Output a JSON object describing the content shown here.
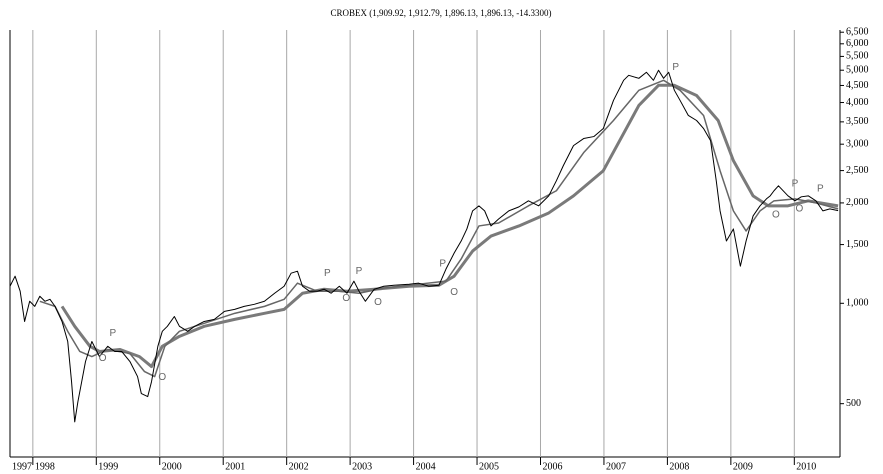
{
  "chart_data": {
    "type": "line",
    "title": "CROBEX (1,909.92, 1,912.79, 1,896.13, 1,896.13, -14.3300)",
    "yscale": "log",
    "y_axis_side": "right",
    "grid": "x",
    "xlim": [
      1997.64,
      2010.72
    ],
    "xticks": [
      1997,
      1998,
      1999,
      2000,
      2001,
      2002,
      2003,
      2004,
      2005,
      2006,
      2007,
      2008,
      2009,
      2010
    ],
    "ylim": [
      346,
      6600
    ],
    "yticks": [
      500,
      {
        "value": 1000,
        "label": "1,000"
      },
      {
        "value": 1500,
        "label": "1,500"
      },
      {
        "value": 2000,
        "label": "2,000"
      },
      {
        "value": 2500,
        "label": "2,500"
      },
      {
        "value": 3000,
        "label": "3,000"
      },
      {
        "value": 3500,
        "label": "3,500"
      },
      {
        "value": 4000,
        "label": "4,000"
      },
      {
        "value": 4500,
        "label": "4,500"
      },
      {
        "value": 5000,
        "label": "5,000"
      },
      {
        "value": 5500,
        "label": "5,500"
      },
      {
        "value": 6000,
        "label": "6,000"
      },
      {
        "value": 6500,
        "label": "6,500"
      }
    ],
    "series": [
      {
        "color": "#000000",
        "width": 1,
        "x": [
          1997.64,
          1997.72,
          1997.8,
          1997.87,
          1997.95,
          1998.03,
          1998.11,
          1998.19,
          1998.27,
          1998.35,
          1998.46,
          1998.55,
          1998.61,
          1998.66,
          1998.71,
          1998.77,
          1998.83,
          1998.93,
          1999.05,
          1999.18,
          1999.29,
          1999.4,
          1999.53,
          1999.65,
          1999.71,
          1999.81,
          1999.87,
          1999.97,
          2000.04,
          2000.12,
          2000.23,
          2000.31,
          2000.44,
          2000.55,
          2000.7,
          2000.86,
          2001.02,
          2001.18,
          2001.33,
          2001.49,
          2001.65,
          2001.81,
          2001.96,
          2002.07,
          2002.17,
          2002.25,
          2002.36,
          2002.48,
          2002.59,
          2002.7,
          2002.83,
          2002.95,
          2003.06,
          2003.14,
          2003.24,
          2003.38,
          2003.53,
          2003.69,
          2003.93,
          2004.08,
          2004.24,
          2004.4,
          2004.51,
          2004.64,
          2004.75,
          2004.84,
          2004.93,
          2005.03,
          2005.12,
          2005.22,
          2005.34,
          2005.5,
          2005.66,
          2005.81,
          2005.97,
          2006.13,
          2006.25,
          2006.36,
          2006.52,
          2006.68,
          2006.84,
          2006.99,
          2007.15,
          2007.31,
          2007.39,
          2007.55,
          2007.67,
          2007.78,
          2007.86,
          2007.94,
          2008.02,
          2008.11,
          2008.2,
          2008.33,
          2008.46,
          2008.57,
          2008.68,
          2008.77,
          2008.83,
          2008.93,
          2009.04,
          2009.15,
          2009.24,
          2009.35,
          2009.46,
          2009.56,
          2009.62,
          2009.68,
          2009.75,
          2009.9,
          2010.01,
          2010.11,
          2010.22,
          2010.34,
          2010.45,
          2010.56,
          2010.69
        ],
        "values": [
          1125,
          1206,
          1087,
          882,
          1014,
          979,
          1050,
          1014,
          1028,
          979,
          882,
          768,
          582,
          441,
          507,
          582,
          669,
          768,
          692,
          743,
          717,
          717,
          669,
          603,
          536,
          525,
          582,
          743,
          824,
          853,
          913,
          853,
          824,
          853,
          882,
          895,
          946,
          959,
          979,
          993,
          1014,
          1072,
          1125,
          1231,
          1248,
          1125,
          1087,
          1087,
          1102,
          1072,
          1125,
          1072,
          1165,
          1087,
          1014,
          1102,
          1125,
          1133,
          1141,
          1149,
          1125,
          1133,
          1266,
          1415,
          1537,
          1671,
          1893,
          1960,
          1893,
          1706,
          1790,
          1893,
          1946,
          2029,
          1960,
          2100,
          2330,
          2587,
          2971,
          3119,
          3162,
          3343,
          4058,
          4663,
          4827,
          4728,
          4929,
          4663,
          5000,
          4728,
          4929,
          4352,
          4058,
          3658,
          3533,
          3343,
          3075,
          2330,
          1893,
          1537,
          1671,
          1292,
          1537,
          1828,
          1960,
          2056,
          2100,
          2175,
          2251,
          2100,
          2029,
          2086,
          2100,
          2029,
          1893,
          1919,
          1896
        ]
      },
      {
        "color": "#666666",
        "width": 1.5,
        "x": [
          1998.11,
          1998.35,
          1998.55,
          1998.74,
          1998.93,
          1999.18,
          1999.53,
          1999.76,
          1999.92,
          2000.08,
          2000.31,
          2000.7,
          2001.18,
          2001.65,
          2001.96,
          2002.17,
          2002.48,
          2002.83,
          2003.14,
          2003.53,
          2004.08,
          2004.51,
          2004.75,
          2005.03,
          2005.34,
          2005.81,
          2006.25,
          2006.68,
          2007.15,
          2007.55,
          2007.94,
          2008.2,
          2008.57,
          2008.83,
          2009.04,
          2009.24,
          2009.46,
          2009.68,
          2010.01,
          2010.34,
          2010.69
        ],
        "values": [
          1014,
          979,
          824,
          717,
          692,
          727,
          707,
          624,
          603,
          743,
          824,
          871,
          933,
          979,
          1028,
          1149,
          1087,
          1087,
          1072,
          1110,
          1141,
          1165,
          1358,
          1706,
          1741,
          1960,
          2175,
          2830,
          3533,
          4352,
          4663,
          4352,
          3658,
          2498,
          1893,
          1648,
          1893,
          2029,
          2056,
          2000,
          1919
        ]
      },
      {
        "color": "#7a7a7a",
        "width": 3,
        "x": [
          1998.46,
          1998.66,
          1998.9,
          1999.05,
          1999.37,
          1999.68,
          1999.87,
          2000.04,
          2000.31,
          2000.7,
          2001.18,
          2001.65,
          2001.96,
          2002.25,
          2002.59,
          2002.95,
          2003.38,
          2003.93,
          2004.4,
          2004.64,
          2004.93,
          2005.22,
          2005.66,
          2006.13,
          2006.52,
          2006.99,
          2007.55,
          2007.86,
          2008.11,
          2008.46,
          2008.8,
          2009.04,
          2009.35,
          2009.59,
          2009.9,
          2010.22,
          2010.69
        ],
        "values": [
          979,
          853,
          743,
          717,
          727,
          692,
          646,
          743,
          796,
          853,
          895,
          933,
          959,
          1072,
          1102,
          1087,
          1102,
          1125,
          1133,
          1206,
          1434,
          1591,
          1706,
          1866,
          2100,
          2498,
          3920,
          4505,
          4505,
          4200,
          3533,
          2678,
          2100,
          1960,
          1960,
          2029,
          1960
        ]
      }
    ],
    "annotations": [
      {
        "text": "O",
        "x": 1999.1,
        "y": 683
      },
      {
        "text": "P",
        "x": 1999.26,
        "y": 813
      },
      {
        "text": "O",
        "x": 2000.04,
        "y": 599
      },
      {
        "text": "P",
        "x": 2002.64,
        "y": 1231
      },
      {
        "text": "O",
        "x": 2002.94,
        "y": 1035
      },
      {
        "text": "P",
        "x": 2003.14,
        "y": 1248
      },
      {
        "text": "O",
        "x": 2003.44,
        "y": 1007
      },
      {
        "text": "P",
        "x": 2004.46,
        "y": 1311
      },
      {
        "text": "O",
        "x": 2004.64,
        "y": 1079
      },
      {
        "text": "P",
        "x": 2008.13,
        "y": 5100
      },
      {
        "text": "O",
        "x": 2009.71,
        "y": 1841
      },
      {
        "text": "P",
        "x": 2010.01,
        "y": 2282
      },
      {
        "text": "O",
        "x": 2010.08,
        "y": 1919
      },
      {
        "text": "P",
        "x": 2010.41,
        "y": 2206
      }
    ]
  }
}
